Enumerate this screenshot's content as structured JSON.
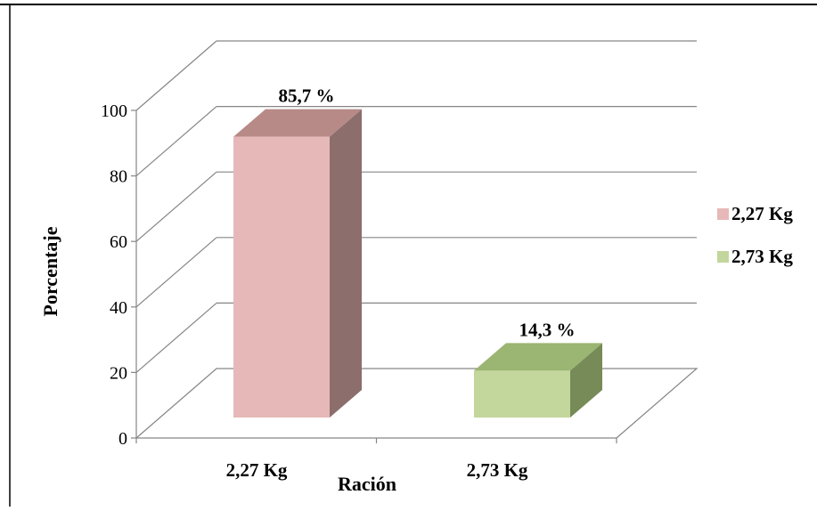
{
  "chart_data": {
    "type": "bar",
    "title": "",
    "xlabel": "Ración",
    "ylabel": "Porcentaje",
    "categories": [
      "2,27 Kg",
      "2,73 Kg"
    ],
    "values": [
      85.7,
      14.3
    ],
    "data_labels": [
      "85,7 %",
      "14,3 %"
    ],
    "ylim": [
      0,
      100
    ],
    "yticks": [
      0,
      20,
      40,
      60,
      80,
      100
    ],
    "ytick_labels": [
      "0",
      "20",
      "40",
      "60",
      "80",
      "100"
    ],
    "grid": true,
    "legend": {
      "position": "right",
      "entries": [
        {
          "label": "2,27 Kg",
          "color": "#e6b9b8"
        },
        {
          "label": "2,73 Kg",
          "color": "#c3d69b"
        }
      ]
    },
    "colors": {
      "bar1_front": "#e6b9b8",
      "bar1_top": "#b78a88",
      "bar1_side": "#8c6e6c",
      "bar2_front": "#c3d69b",
      "bar2_top": "#9bb572",
      "bar2_side": "#768b58",
      "gridline": "#868686",
      "frame": "#000000"
    }
  }
}
